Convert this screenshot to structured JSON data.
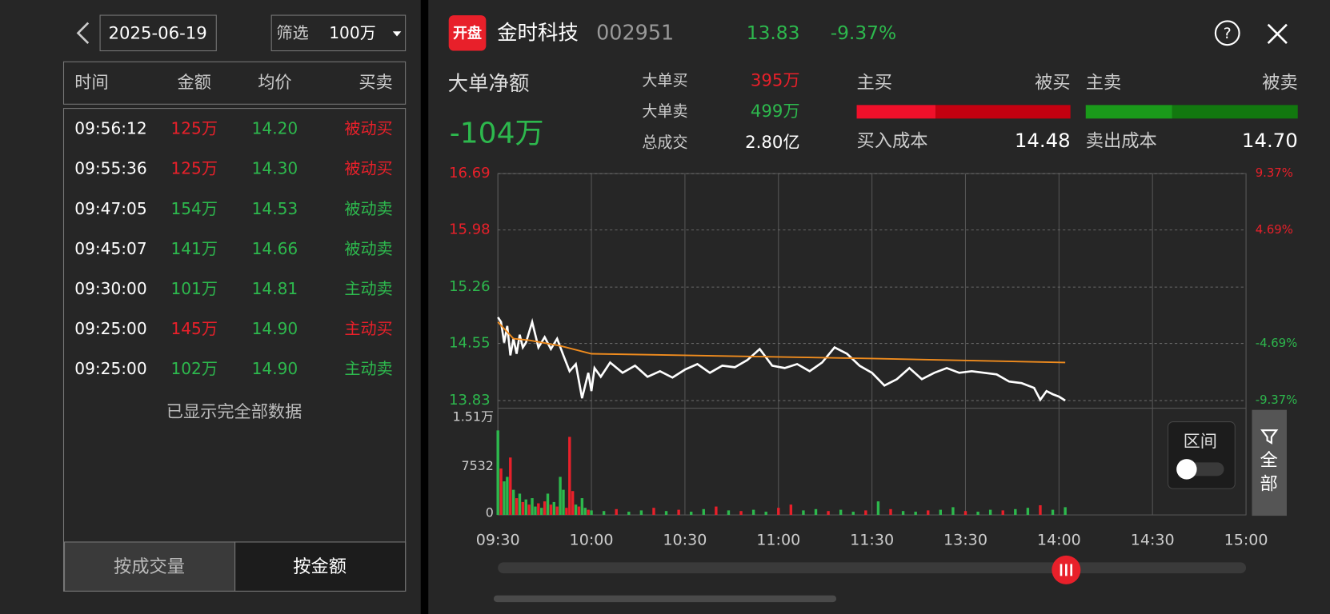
{
  "left": {
    "date": "2025-06-19",
    "filter_label": "筛选",
    "filter_value": "100万",
    "columns": [
      "时间",
      "金额",
      "均价",
      "买卖"
    ],
    "price_color": "#2db84d",
    "rows": [
      {
        "cells": [
          "09:56:12",
          "125万",
          "14.20",
          "被动买"
        ],
        "color": "#e8202a"
      },
      {
        "cells": [
          "09:55:36",
          "125万",
          "14.30",
          "被动买"
        ],
        "color": "#e8202a"
      },
      {
        "cells": [
          "09:47:05",
          "154万",
          "14.53",
          "被动卖"
        ],
        "color": "#2db84d"
      },
      {
        "cells": [
          "09:45:07",
          "141万",
          "14.66",
          "被动卖"
        ],
        "color": "#2db84d"
      },
      {
        "cells": [
          "09:30:00",
          "101万",
          "14.81",
          "主动卖"
        ],
        "color": "#2db84d"
      },
      {
        "cells": [
          "09:25:00",
          "145万",
          "14.90",
          "主动买"
        ],
        "color": "#e8202a"
      },
      {
        "cells": [
          "09:25:00",
          "102万",
          "14.90",
          "主动卖"
        ],
        "color": "#2db84d"
      }
    ],
    "footer": "已显示完全部数据",
    "tabs": [
      "按成交量",
      "按金额"
    ]
  },
  "header": {
    "logo": "开盘",
    "name": "金时科技",
    "code": "002951",
    "price": "13.83",
    "change": "-9.37%"
  },
  "stats": {
    "net_label": "大单净额",
    "net_value": "-104万",
    "buy_label": "大单买",
    "buy_value": "395万",
    "sell_label": "大单卖",
    "sell_value": "499万",
    "total_label": "总成交",
    "total_value": "2.80亿",
    "main_buy": "主买",
    "passive_buy": "被买",
    "main_sell": "主卖",
    "passive_sell": "被卖",
    "buy_cost_label": "买入成本",
    "buy_cost": "14.48",
    "sell_cost_label": "卖出成本",
    "sell_cost": "14.70"
  },
  "chart_data": [
    {
      "type": "line",
      "xlim": [
        0,
        240
      ],
      "xticks": [
        {
          "value": 0,
          "label": "09:30"
        },
        {
          "value": 30,
          "label": "10:00"
        },
        {
          "value": 60,
          "label": "10:30"
        },
        {
          "value": 90,
          "label": "11:00"
        },
        {
          "value": 120,
          "label": "11:30"
        },
        {
          "value": 150,
          "label": "13:30"
        },
        {
          "value": 180,
          "label": "14:00"
        },
        {
          "value": 210,
          "label": "14:30"
        },
        {
          "value": 240,
          "label": "15:00"
        }
      ],
      "ylim": [
        13.83,
        16.69
      ],
      "yticks": [
        16.69,
        15.98,
        15.26,
        14.55,
        13.83
      ],
      "y2lim": [
        -9.37,
        9.37
      ],
      "y2ticks": [
        {
          "value": 9.37,
          "label": "9.37%"
        },
        {
          "value": 4.69,
          "label": "4.69%"
        },
        {
          "value": -4.69,
          "label": "-4.69%"
        },
        {
          "value": -9.37,
          "label": "-9.37%"
        }
      ],
      "up_color": "#e8202a",
      "down_color": "#2db84d",
      "grid": true,
      "series": [
        {
          "color": "#ffffff",
          "x": [
            0,
            1,
            2,
            3,
            4,
            5,
            6,
            7,
            8,
            9,
            11,
            13,
            15,
            17,
            19,
            21,
            23,
            25,
            27,
            29,
            30,
            31,
            33,
            36,
            40,
            44,
            48,
            52,
            56,
            60,
            64,
            68,
            72,
            76,
            80,
            84,
            88,
            92,
            96,
            100,
            104,
            108,
            112,
            116,
            120,
            124,
            128,
            132,
            136,
            140,
            144,
            148,
            152,
            156,
            160,
            164,
            168,
            172,
            174,
            176,
            178,
            180,
            182
          ],
          "values": [
            14.88,
            14.82,
            14.56,
            14.77,
            14.4,
            14.61,
            14.42,
            14.66,
            14.5,
            14.56,
            14.82,
            14.5,
            14.63,
            14.48,
            14.61,
            14.4,
            14.2,
            14.29,
            13.86,
            14.18,
            13.95,
            14.24,
            14.13,
            14.31,
            14.18,
            14.27,
            14.13,
            14.2,
            14.12,
            14.22,
            14.29,
            14.18,
            14.27,
            14.25,
            14.34,
            14.48,
            14.27,
            14.24,
            14.29,
            14.2,
            14.31,
            14.5,
            14.42,
            14.27,
            14.18,
            14.02,
            14.1,
            14.24,
            14.1,
            14.18,
            14.24,
            14.18,
            14.2,
            14.18,
            14.16,
            14.07,
            14.05,
            13.99,
            13.84,
            13.95,
            13.91,
            13.88,
            13.83
          ]
        },
        {
          "color": "#f08c1e",
          "x": [
            0,
            5,
            10,
            20,
            30,
            60,
            120,
            182
          ],
          "values": [
            14.82,
            14.61,
            14.59,
            14.52,
            14.42,
            14.4,
            14.36,
            14.31
          ]
        }
      ]
    },
    {
      "type": "bar",
      "xlim": [
        0,
        240
      ],
      "ylim": [
        0,
        15100
      ],
      "yticks": [
        0,
        7532,
        {
          "value": 15100,
          "label": "1.51万"
        }
      ],
      "x": [
        0,
        1,
        2,
        3,
        4,
        5,
        6,
        7,
        8,
        9,
        10,
        11,
        12,
        13,
        14,
        15,
        16,
        17,
        18,
        19,
        20,
        21,
        22,
        23,
        24,
        25,
        26,
        27,
        28,
        29,
        30,
        34,
        38,
        42,
        46,
        50,
        54,
        58,
        62,
        66,
        70,
        74,
        78,
        82,
        86,
        90,
        94,
        98,
        102,
        106,
        110,
        114,
        118,
        122,
        126,
        130,
        134,
        138,
        142,
        146,
        150,
        154,
        158,
        162,
        166,
        170,
        174,
        178,
        182
      ],
      "values": [
        13100,
        7200,
        5200,
        5900,
        8900,
        3900,
        2600,
        3300,
        2000,
        2400,
        1600,
        2600,
        1300,
        1800,
        1100,
        2100,
        3300,
        1600,
        2000,
        1300,
        5900,
        3900,
        1100,
        12100,
        3700,
        1600,
        1300,
        2600,
        1100,
        800,
        700,
        600,
        900,
        500,
        700,
        1100,
        600,
        800,
        500,
        900,
        1300,
        700,
        600,
        800,
        500,
        1100,
        1600,
        700,
        900,
        600,
        800,
        500,
        700,
        2100,
        900,
        600,
        500,
        700,
        800,
        1200,
        600,
        500,
        800,
        700,
        900,
        1100,
        1500,
        800,
        1200
      ],
      "colors": [
        "#2db84d",
        "#e8202a",
        "#2db84d",
        "#2db84d",
        "#e8202a",
        "#2db84d",
        "#e8202a",
        "#2db84d",
        "#e8202a",
        "#2db84d",
        "#e8202a",
        "#2db84d",
        "#2db84d",
        "#e8202a",
        "#2db84d",
        "#e8202a",
        "#2db84d",
        "#e8202a",
        "#2db84d",
        "#e8202a",
        "#2db84d",
        "#2db84d",
        "#e8202a",
        "#e8202a",
        "#e8202a",
        "#2db84d",
        "#e8202a",
        "#2db84d",
        "#2db84d",
        "#e8202a",
        "#2db84d",
        "#2db84d",
        "#e8202a",
        "#2db84d",
        "#2db84d",
        "#e8202a",
        "#2db84d",
        "#e8202a",
        "#2db84d",
        "#2db84d",
        "#e8202a",
        "#2db84d",
        "#e8202a",
        "#2db84d",
        "#2db84d",
        "#e8202a",
        "#e8202a",
        "#2db84d",
        "#2db84d",
        "#e8202a",
        "#2db84d",
        "#2db84d",
        "#e8202a",
        "#2db84d",
        "#e8202a",
        "#2db84d",
        "#2db84d",
        "#e8202a",
        "#2db84d",
        "#2db84d",
        "#e8202a",
        "#2db84d",
        "#2db84d",
        "#e8202a",
        "#2db84d",
        "#2db84d",
        "#e8202a",
        "#2db84d",
        "#2db84d"
      ]
    }
  ],
  "controls": {
    "range": "区间",
    "filter_chars": [
      "全",
      "部"
    ]
  }
}
